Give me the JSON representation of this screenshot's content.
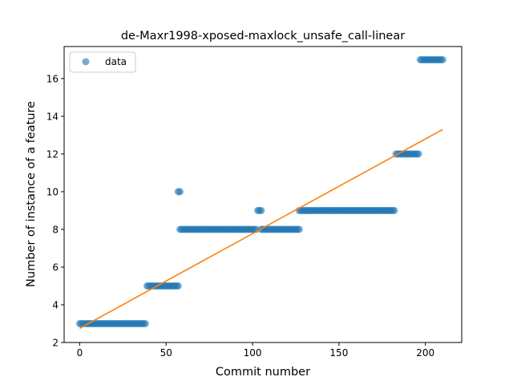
{
  "chart_data": {
    "type": "scatter",
    "title": "de-Maxr1998-xposed-maxlock_unsafe_call-linear",
    "xlabel": "Commit number",
    "ylabel": "Number of instance of a feature",
    "xlim": [
      -9,
      221
    ],
    "ylim": [
      2,
      17.7
    ],
    "xticks": [
      0,
      50,
      100,
      150,
      200
    ],
    "yticks": [
      2,
      4,
      6,
      8,
      10,
      12,
      14,
      16
    ],
    "legend": {
      "position": "top-left",
      "entries": [
        "data"
      ]
    },
    "grid": false,
    "colors": {
      "data": "#1f77b4",
      "fit": "#ff7f0e"
    },
    "series": [
      {
        "name": "data",
        "kind": "scatter",
        "segments": [
          {
            "x_start": 0,
            "x_end": 38,
            "y": 3
          },
          {
            "x_start": 39,
            "x_end": 57,
            "y": 5
          },
          {
            "x_start": 57,
            "x_end": 58,
            "y": 10
          },
          {
            "x_start": 58,
            "x_end": 102,
            "y": 8
          },
          {
            "x_start": 103,
            "x_end": 105,
            "y": 9
          },
          {
            "x_start": 105,
            "x_end": 127,
            "y": 8
          },
          {
            "x_start": 127,
            "x_end": 182,
            "y": 9
          },
          {
            "x_start": 183,
            "x_end": 196,
            "y": 12
          },
          {
            "x_start": 197,
            "x_end": 210,
            "y": 17
          }
        ]
      },
      {
        "kind": "line",
        "x": [
          0,
          210
        ],
        "y": [
          2.75,
          13.3
        ]
      }
    ]
  }
}
